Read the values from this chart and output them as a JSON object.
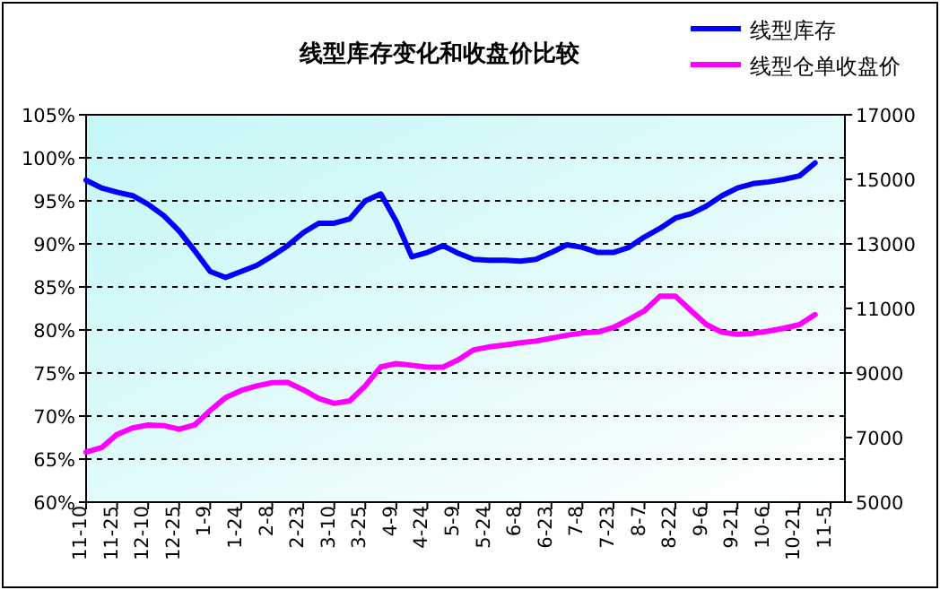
{
  "chart_data": {
    "type": "line",
    "title": "线型库存变化和收盘价比较",
    "categories": [
      "11-10",
      null,
      "11-25",
      null,
      "12-10",
      null,
      "12-25",
      null,
      "1-9",
      null,
      "1-24",
      null,
      "2-8",
      null,
      "2-23",
      null,
      "3-10",
      null,
      "3-25",
      null,
      "4-9",
      null,
      "4-24",
      null,
      "5-9",
      null,
      "5-24",
      null,
      "6-8",
      null,
      "6-23",
      null,
      "7-8",
      null,
      "7-23",
      null,
      "8-7",
      null,
      "8-22",
      null,
      "9-6",
      null,
      "9-21",
      null,
      "10-6",
      null,
      "10-21",
      null,
      "11-5"
    ],
    "series": [
      {
        "name": "线型库存",
        "color": "#0000ff",
        "values": [
          97.4,
          96.5,
          96.0,
          95.6,
          94.6,
          93.3,
          91.5,
          89.2,
          86.8,
          86.1,
          86.8,
          87.5,
          88.6,
          89.8,
          91.3,
          92.4,
          92.4,
          92.9,
          95.0,
          95.8,
          92.6,
          88.5,
          89.0,
          89.8,
          88.9,
          88.2,
          88.1,
          88.1,
          88.0,
          88.2,
          89.0,
          89.9,
          89.6,
          89.0,
          89.0,
          89.6,
          90.8,
          91.8,
          93.0,
          93.5,
          94.4,
          95.6,
          96.5,
          97.0,
          97.2,
          97.5,
          97.9,
          99.4,
          null
        ]
      },
      {
        "name": "线型仓单收盘价",
        "color": "#ff00ff",
        "axis": "y2",
        "values": [
          6550,
          6690,
          7100,
          7300,
          7390,
          7370,
          7260,
          7390,
          7840,
          8240,
          8460,
          8600,
          8700,
          8710,
          8480,
          8210,
          8060,
          8140,
          8600,
          9190,
          9290,
          9240,
          9180,
          9180,
          9410,
          9720,
          9810,
          9870,
          9940,
          9990,
          10080,
          10170,
          10240,
          10270,
          10410,
          10660,
          10930,
          11380,
          11380,
          10930,
          10500,
          10260,
          10200,
          10230,
          10300,
          10390,
          10500,
          10810,
          null
        ]
      }
    ],
    "ylim": [
      60,
      105
    ],
    "yticks": [
      {
        "value": 60,
        "label": "60%"
      },
      {
        "value": 65,
        "label": "65%"
      },
      {
        "value": 70,
        "label": "70%"
      },
      {
        "value": 75,
        "label": "75%"
      },
      {
        "value": 80,
        "label": "80%"
      },
      {
        "value": 85,
        "label": "85%"
      },
      {
        "value": 90,
        "label": "90%"
      },
      {
        "value": 95,
        "label": "95%"
      },
      {
        "value": 100,
        "label": "100%"
      },
      {
        "value": 105,
        "label": "105%"
      }
    ],
    "y2lim": [
      5000,
      17000
    ],
    "y2ticks": [
      5000,
      7000,
      9000,
      11000,
      13000,
      15000,
      17000
    ],
    "grid": "y",
    "legend": "top right"
  }
}
